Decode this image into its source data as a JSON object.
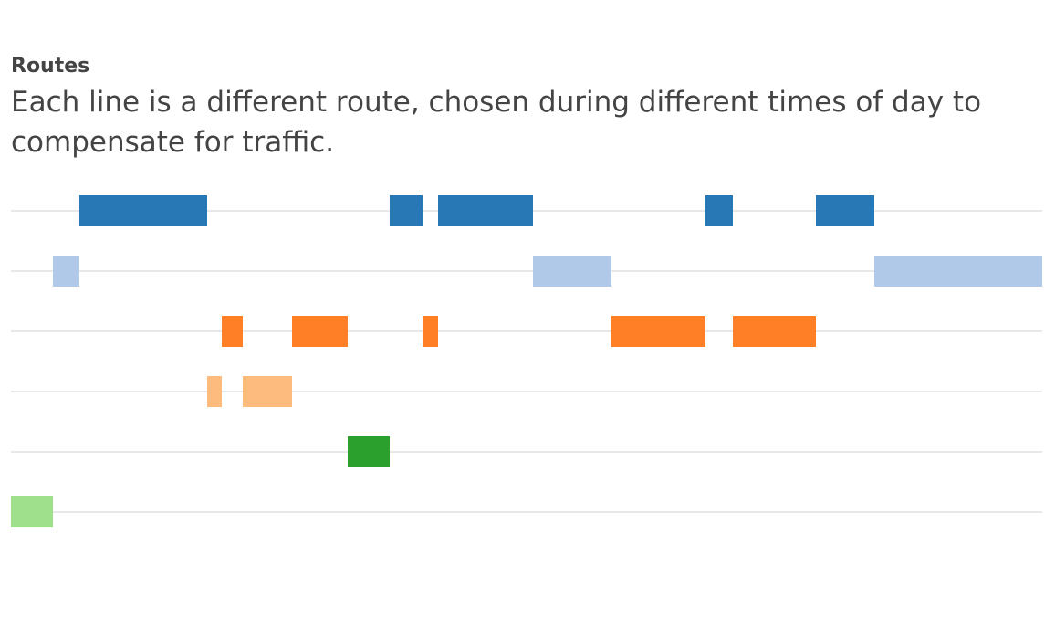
{
  "chart_data": {
    "type": "timeline",
    "title": "Routes",
    "subtitle": "Each line is a different route, chosen during different times of day to compensate for traffic.",
    "xlim": [
      0,
      1130
    ],
    "grid": true,
    "legend": "none",
    "series": [
      {
        "color": "#2878b5",
        "segments": [
          [
            75,
            215
          ],
          [
            415,
            451
          ],
          [
            468,
            572
          ],
          [
            761,
            791
          ],
          [
            882,
            946
          ]
        ]
      },
      {
        "color": "#b0c9e8",
        "segments": [
          [
            46,
            75
          ],
          [
            572,
            658
          ],
          [
            946,
            1130
          ]
        ]
      },
      {
        "color": "#ff7f27",
        "segments": [
          [
            231,
            254
          ],
          [
            308,
            369
          ],
          [
            451,
            468
          ],
          [
            658,
            761
          ],
          [
            791,
            882
          ]
        ]
      },
      {
        "color": "#fdbb7d",
        "segments": [
          [
            215,
            231
          ],
          [
            254,
            308
          ]
        ]
      },
      {
        "color": "#2ca02c",
        "segments": [
          [
            369,
            415
          ]
        ]
      },
      {
        "color": "#9fe08c",
        "segments": [
          [
            0,
            46
          ]
        ]
      }
    ]
  }
}
